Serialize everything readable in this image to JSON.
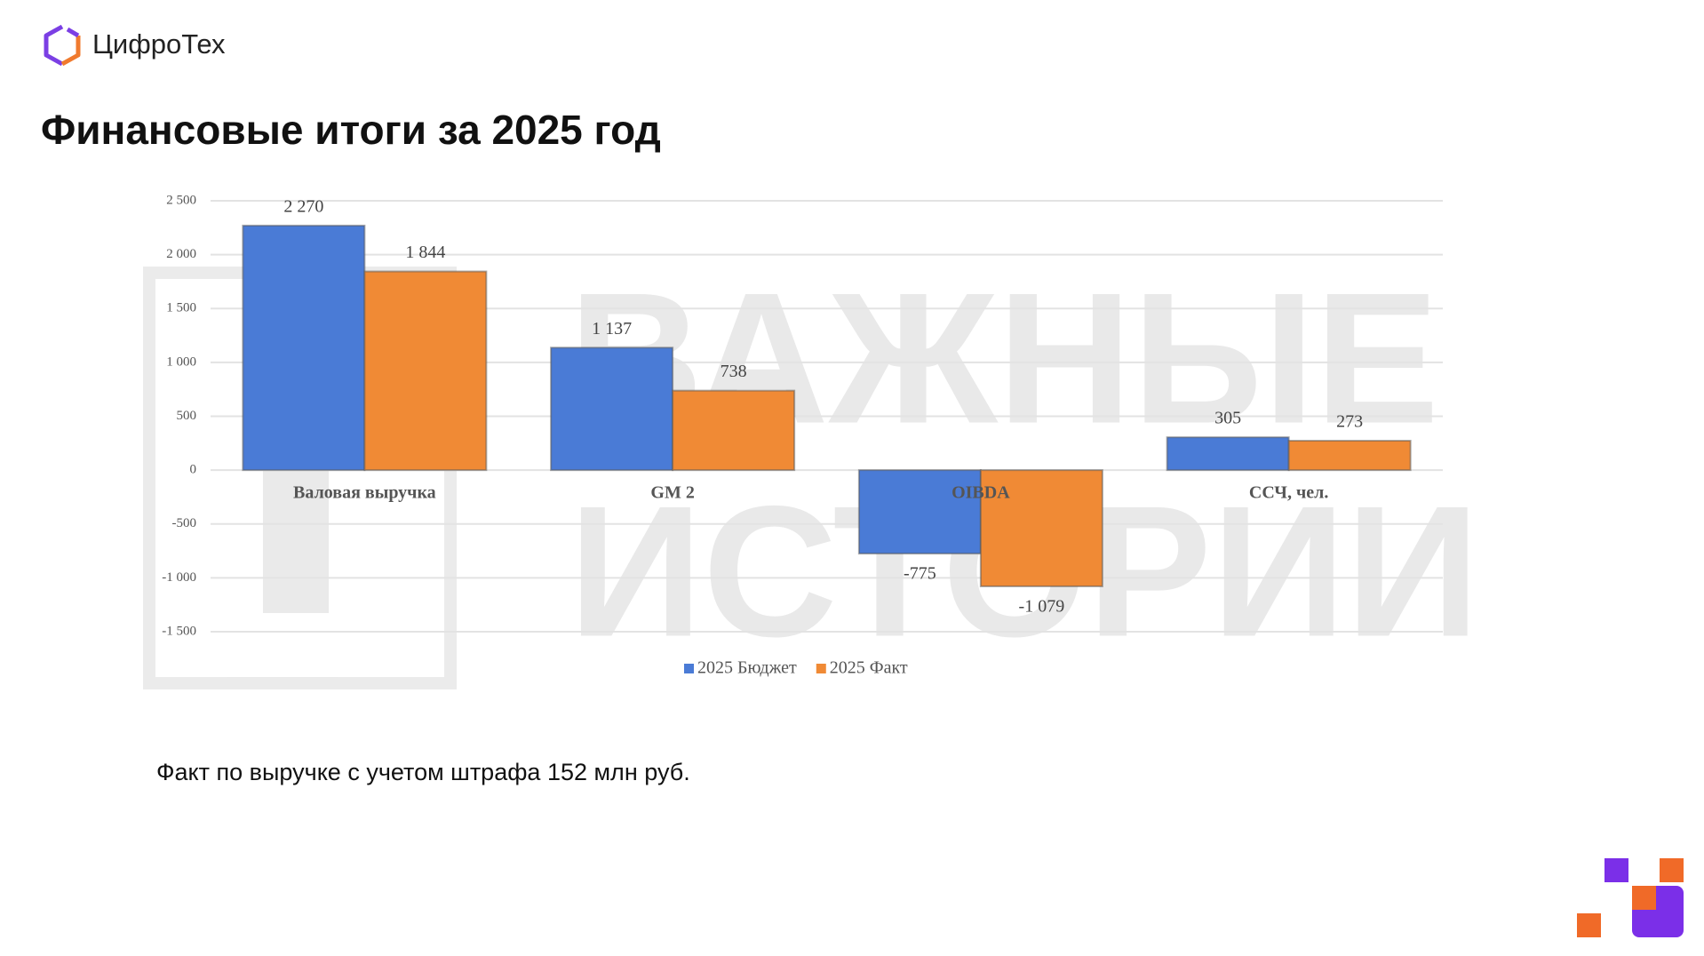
{
  "logo": "ЦифроТех",
  "title": "Финансовые итоги за 2025 год",
  "note": "Факт по выручке с учетом штрафа 152 млн руб.",
  "watermark": [
    "ВАЖНЫЕ",
    "ИСТОРИИ"
  ],
  "chart_data": {
    "type": "bar",
    "categories": [
      "Валовая выручка",
      "GM 2",
      "OIBDA",
      "ССЧ, чел."
    ],
    "series": [
      {
        "name": "2025 Бюджет",
        "color": "#4a7bd6",
        "values": [
          2270,
          1137,
          -775,
          305
        ],
        "value_labels": [
          "2 270",
          "1 137",
          "-775",
          "305"
        ]
      },
      {
        "name": "2025 Факт",
        "color": "#f08a35",
        "values": [
          1844,
          738,
          -1079,
          273
        ],
        "value_labels": [
          "1 844",
          "738",
          "-1 079",
          "273"
        ]
      }
    ],
    "ylim": [
      -1500,
      2500
    ],
    "yticks": [
      {
        "value": -1500,
        "label": "-1 500"
      },
      {
        "value": -1000,
        "label": "-1 000"
      },
      -500,
      0,
      500,
      {
        "value": 1000,
        "label": "1 000"
      },
      {
        "value": 1500,
        "label": "1 500"
      },
      {
        "value": 2000,
        "label": "2 000"
      },
      {
        "value": 2500,
        "label": "2 500"
      }
    ],
    "grid": true,
    "legend": "bottom"
  }
}
